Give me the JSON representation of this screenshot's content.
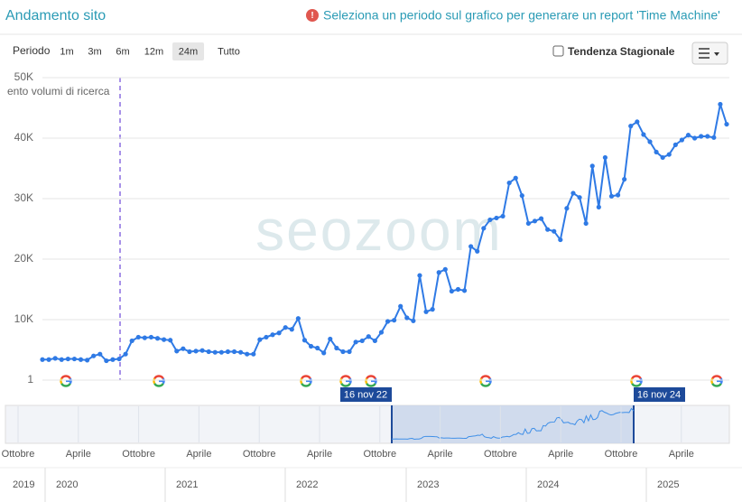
{
  "header": {
    "title": "Andamento sito",
    "notice": "Seleziona un periodo sul grafico per generare un report 'Time Machine'"
  },
  "toolbar": {
    "label": "Periodo",
    "buttons": [
      "1m",
      "3m",
      "6m",
      "12m",
      "24m",
      "Tutto"
    ],
    "active": "24m",
    "checkbox": "Tendenza Stagionale"
  },
  "watermark": "seozoom",
  "chart_data": {
    "type": "line",
    "y_label": "ento volumi di ricerca",
    "color": "#2f7ae5",
    "grid": true,
    "values": [
      3400,
      3400,
      3600,
      3400,
      3500,
      3500,
      3400,
      3300,
      4000,
      4300,
      3200,
      3400,
      3500,
      4300,
      6500,
      7100,
      7000,
      7100,
      6900,
      6700,
      6600,
      4800,
      5200,
      4700,
      4800,
      4900,
      4700,
      4600,
      4600,
      4700,
      4700,
      4600,
      4300,
      4300,
      6700,
      7100,
      7500,
      7800,
      8700,
      8400,
      10200,
      6600,
      5600,
      5300,
      4500,
      6800,
      5300,
      4700,
      4700,
      6300,
      6500,
      7200,
      6500,
      7900,
      9700,
      9900,
      12200,
      10300,
      9800,
      17300,
      11300,
      11700,
      17800,
      18300,
      14700,
      15000,
      14800,
      22100,
      21300,
      25100,
      26500,
      26800,
      27100,
      32600,
      33400,
      30500,
      25900,
      26300,
      26700,
      24900,
      24600,
      23200,
      28400,
      30900,
      30200,
      25900,
      35400,
      28600,
      36800,
      30400,
      30600,
      33200,
      42000,
      42700,
      40600,
      39400,
      37700,
      36800,
      37300,
      38900,
      39700,
      40500,
      40000,
      40300,
      40300,
      40100,
      45600,
      42300
    ],
    "ylim": [
      1,
      50000
    ],
    "yticks": [
      1,
      {
        "value": 10000,
        "label": "10K"
      },
      {
        "value": 20000,
        "label": "20K"
      },
      {
        "value": 30000,
        "label": "30K"
      },
      {
        "value": 40000,
        "label": "40K"
      },
      {
        "value": 50000,
        "label": "50K"
      }
    ]
  },
  "navigator": {
    "start": "16 nov 22",
    "end": "16 nov 24",
    "months": [
      "Ottobre",
      "Aprile",
      "Ottobre",
      "Aprile",
      "Ottobre",
      "Aprile",
      "Ottobre",
      "Aprile",
      "Ottobre",
      "Aprile",
      "Ottobre",
      "Aprile"
    ],
    "years": [
      "2019",
      "2020",
      "2021",
      "2022",
      "2023",
      "2024",
      "2025"
    ]
  }
}
